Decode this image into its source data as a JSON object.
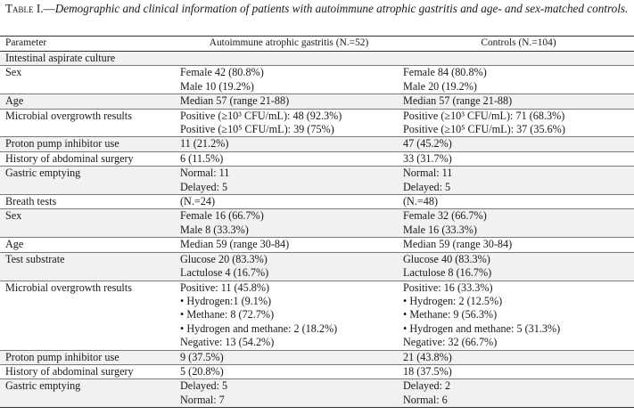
{
  "caption": {
    "lead": "Table I.—",
    "text": "Demographic and clinical information of patients with autoimmune atrophic gastritis and age- and sex-matched controls."
  },
  "header": {
    "col1": "Parameter",
    "col2": "Autoimmune atrophic gastritis (N.=52)",
    "col3": "Controls (N.=104)"
  },
  "rows": [
    {
      "param": "Intestinal aspirate culture",
      "aag": [],
      "ctrl": []
    },
    {
      "param": "Sex",
      "aag": [
        "Female 42 (80.8%)",
        "Male 10 (19.2%)"
      ],
      "ctrl": [
        "Female 84 (80.8%)",
        "Male 20 (19.2%)"
      ]
    },
    {
      "param": "Age",
      "aag": [
        "Median 57 (range 21-88)"
      ],
      "ctrl": [
        "Median 57 (range 21-88)"
      ]
    },
    {
      "param": "Microbial overgrowth results",
      "aag": [
        "Positive (≥10³ CFU/mL): 48 (92.3%)",
        "Positive (≥10⁵ CFU/mL): 39 (75%)"
      ],
      "ctrl": [
        "Positive (≥10³ CFU/mL): 71 (68.3%)",
        "Positive (≥10⁵ CFU/mL): 37 (35.6%)"
      ]
    },
    {
      "param": "Proton pump inhibitor use",
      "aag": [
        "11 (21.2%)"
      ],
      "ctrl": [
        "47 (45.2%)"
      ]
    },
    {
      "param": "History of abdominal surgery",
      "aag": [
        "6 (11.5%)"
      ],
      "ctrl": [
        "33 (31.7%)"
      ]
    },
    {
      "param": "Gastric emptying",
      "aag": [
        "Normal: 11",
        "Delayed: 5"
      ],
      "ctrl": [
        "Normal: 11",
        "Delayed: 5"
      ]
    },
    {
      "param": "Breath tests",
      "aag": [
        "(N.=24)"
      ],
      "ctrl": [
        "(N.=48)"
      ]
    },
    {
      "param": "Sex",
      "aag": [
        "Female 16 (66.7%)",
        "Male 8 (33.3%)"
      ],
      "ctrl": [
        "Female 32 (66.7%)",
        "Male 16 (33.3%)"
      ]
    },
    {
      "param": "Age",
      "aag": [
        "Median 59 (range 30-84)"
      ],
      "ctrl": [
        "Median 59 (range 30-84)"
      ]
    },
    {
      "param": "Test substrate",
      "aag": [
        "Glucose 20 (83.3%)",
        "Lactulose 4 (16.7%)"
      ],
      "ctrl": [
        "Glucose 40 (83.3%)",
        "Lactulose 8 (16.7%)"
      ]
    },
    {
      "param": "Microbial overgrowth results",
      "aag": [
        "Positive: 11 (45.8%)",
        "• Hydrogen:1 (9.1%)",
        "• Methane: 8 (72.7%)",
        "• Hydrogen and methane: 2 (18.2%)",
        "Negative: 13 (54.2%)"
      ],
      "ctrl": [
        "Positive: 16 (33.3%)",
        "• Hydrogen: 2 (12.5%)",
        "• Methane: 9 (56.3%)",
        "• Hydrogen and methane: 5 (31.3%)",
        "Negative: 32 (66.7%)"
      ]
    },
    {
      "param": "Proton pump inhibitor use",
      "aag": [
        "9 (37.5%)"
      ],
      "ctrl": [
        "21 (43.8%)"
      ]
    },
    {
      "param": "History of abdominal surgery",
      "aag": [
        "5 (20.8%)"
      ],
      "ctrl": [
        "18 (37.5%)"
      ]
    },
    {
      "param": "Gastric emptying",
      "aag": [
        "Delayed: 5",
        "Normal: 7"
      ],
      "ctrl": [
        "Delayed: 2",
        "Normal: 6"
      ]
    }
  ]
}
